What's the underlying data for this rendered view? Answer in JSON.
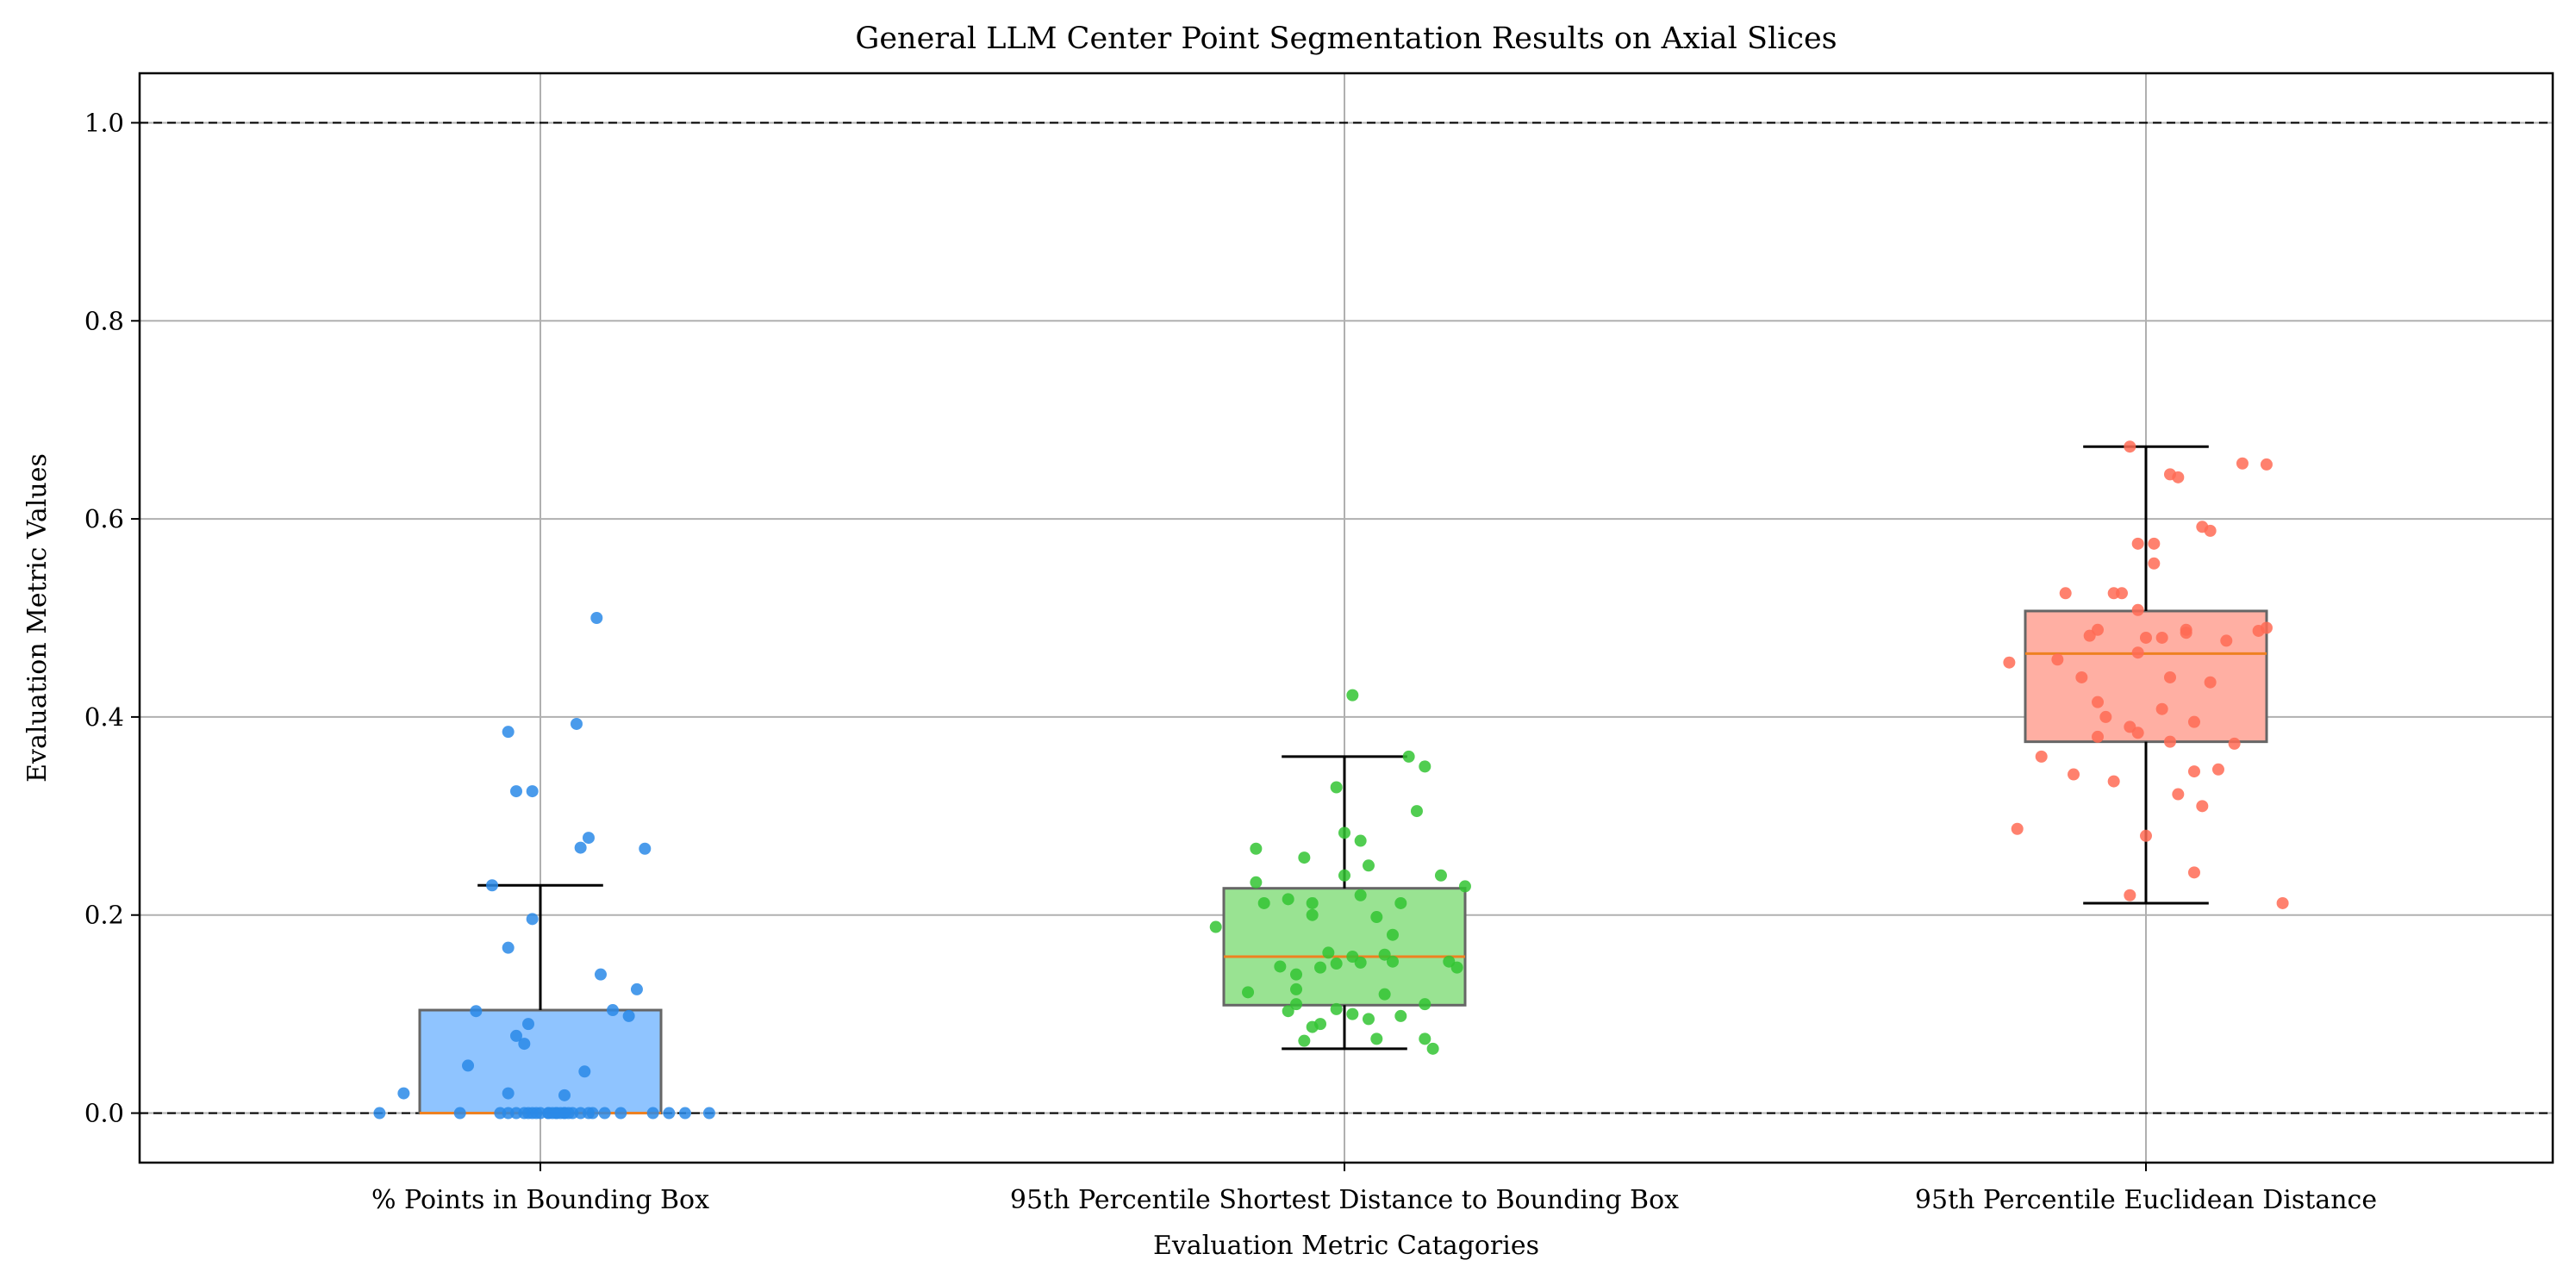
{
  "chart_data": {
    "type": "box",
    "title": "General LLM Center Point Segmentation Results on Axial Slices",
    "xlabel": "Evaluation Metric Catagories",
    "ylabel": "Evaluation Metric Values",
    "ylim": [
      -0.05,
      1.05
    ],
    "yticks": [
      0.0,
      0.2,
      0.4,
      0.6,
      0.8,
      1.0
    ],
    "ytick_labels": [
      "0.0",
      "0.2",
      "0.4",
      "0.6",
      "0.8",
      "1.0"
    ],
    "reference_lines": [
      0.0,
      1.0
    ],
    "grid": true,
    "categories": [
      "% Points in Bounding Box",
      "95th Percentile Shortest Distance to Bounding Box",
      "95th Percentile Euclidean Distance"
    ],
    "boxes": [
      {
        "q1": 0.0,
        "median": 0.0,
        "q3": 0.104,
        "whisker_low": 0.0,
        "whisker_high": 0.23
      },
      {
        "q1": 0.109,
        "median": 0.158,
        "q3": 0.227,
        "whisker_low": 0.065,
        "whisker_high": 0.36
      },
      {
        "q1": 0.375,
        "median": 0.464,
        "q3": 0.507,
        "whisker_low": 0.212,
        "whisker_high": 0.673
      }
    ],
    "points": [
      [
        [
          -0.2,
          0.0
        ],
        [
          -0.17,
          0.02
        ],
        [
          -0.1,
          0.0
        ],
        [
          -0.06,
          0.23
        ],
        [
          -0.05,
          0.0
        ],
        [
          -0.04,
          0.0
        ],
        [
          -0.03,
          0.0
        ],
        [
          -0.03,
          0.325
        ],
        [
          -0.02,
          0.0
        ],
        [
          -0.015,
          0.0
        ],
        [
          -0.01,
          0.0
        ],
        [
          -0.005,
          0.0
        ],
        [
          0.0,
          0.0
        ],
        [
          0.01,
          0.0
        ],
        [
          0.015,
          0.0
        ],
        [
          0.02,
          0.0
        ],
        [
          0.025,
          0.0
        ],
        [
          0.03,
          0.0
        ],
        [
          0.035,
          0.0
        ],
        [
          0.04,
          0.0
        ],
        [
          0.05,
          0.0
        ],
        [
          -0.09,
          0.048
        ],
        [
          -0.08,
          0.103
        ],
        [
          -0.04,
          0.385
        ],
        [
          -0.04,
          0.167
        ],
        [
          -0.04,
          0.02
        ],
        [
          -0.03,
          0.078
        ],
        [
          -0.02,
          0.07
        ],
        [
          -0.015,
          0.09
        ],
        [
          -0.01,
          0.196
        ],
        [
          -0.01,
          0.325
        ],
        [
          0.01,
          0.0
        ],
        [
          0.02,
          0.0
        ],
        [
          0.03,
          0.018
        ],
        [
          0.045,
          0.393
        ],
        [
          0.03,
          0.0
        ],
        [
          0.05,
          0.268
        ],
        [
          0.06,
          0.278
        ],
        [
          0.055,
          0.042
        ],
        [
          0.065,
          0.0
        ],
        [
          0.075,
          0.14
        ],
        [
          0.09,
          0.104
        ],
        [
          0.07,
          0.5
        ],
        [
          0.08,
          0.0
        ],
        [
          0.11,
          0.098
        ],
        [
          0.12,
          0.125
        ],
        [
          0.13,
          0.267
        ],
        [
          0.14,
          0.0
        ],
        [
          0.16,
          0.0
        ],
        [
          0.18,
          0.0
        ],
        [
          0.21,
          0.0
        ],
        [
          0.06,
          0.0
        ],
        [
          0.1,
          0.0
        ]
      ],
      [
        [
          -0.16,
          0.188
        ],
        [
          -0.12,
          0.122
        ],
        [
          -0.11,
          0.233
        ],
        [
          -0.11,
          0.267
        ],
        [
          -0.1,
          0.212
        ],
        [
          -0.08,
          0.148
        ],
        [
          -0.07,
          0.216
        ],
        [
          -0.07,
          0.103
        ],
        [
          -0.06,
          0.14
        ],
        [
          -0.06,
          0.125
        ],
        [
          -0.06,
          0.11
        ],
        [
          -0.05,
          0.073
        ],
        [
          -0.05,
          0.258
        ],
        [
          -0.04,
          0.087
        ],
        [
          -0.04,
          0.2
        ],
        [
          -0.04,
          0.212
        ],
        [
          -0.03,
          0.09
        ],
        [
          -0.03,
          0.147
        ],
        [
          -0.02,
          0.162
        ],
        [
          -0.01,
          0.105
        ],
        [
          -0.01,
          0.151
        ],
        [
          -0.01,
          0.329
        ],
        [
          0.0,
          0.283
        ],
        [
          0.0,
          0.24
        ],
        [
          0.01,
          0.158
        ],
        [
          0.01,
          0.1
        ],
        [
          0.01,
          0.422
        ],
        [
          0.02,
          0.152
        ],
        [
          0.02,
          0.275
        ],
        [
          0.03,
          0.25
        ],
        [
          0.03,
          0.095
        ],
        [
          0.04,
          0.198
        ],
        [
          0.04,
          0.075
        ],
        [
          0.05,
          0.16
        ],
        [
          0.06,
          0.153
        ],
        [
          0.06,
          0.18
        ],
        [
          0.07,
          0.098
        ],
        [
          0.08,
          0.36
        ],
        [
          0.09,
          0.305
        ],
        [
          0.1,
          0.35
        ],
        [
          0.1,
          0.11
        ],
        [
          0.11,
          0.065
        ],
        [
          0.12,
          0.24
        ],
        [
          0.13,
          0.153
        ],
        [
          0.14,
          0.147
        ],
        [
          0.15,
          0.229
        ],
        [
          0.02,
          0.22
        ],
        [
          0.05,
          0.12
        ],
        [
          0.07,
          0.212
        ],
        [
          0.1,
          0.075
        ]
      ],
      [
        [
          -0.17,
          0.455
        ],
        [
          -0.16,
          0.287
        ],
        [
          -0.13,
          0.36
        ],
        [
          -0.11,
          0.458
        ],
        [
          -0.1,
          0.525
        ],
        [
          -0.09,
          0.342
        ],
        [
          -0.08,
          0.44
        ],
        [
          -0.07,
          0.482
        ],
        [
          -0.06,
          0.488
        ],
        [
          -0.06,
          0.415
        ],
        [
          -0.06,
          0.38
        ],
        [
          -0.05,
          0.4
        ],
        [
          -0.04,
          0.525
        ],
        [
          -0.04,
          0.335
        ],
        [
          -0.03,
          0.525
        ],
        [
          -0.02,
          0.39
        ],
        [
          -0.02,
          0.673
        ],
        [
          -0.02,
          0.22
        ],
        [
          -0.01,
          0.575
        ],
        [
          -0.01,
          0.508
        ],
        [
          -0.01,
          0.465
        ],
        [
          -0.01,
          0.384
        ],
        [
          0.0,
          0.48
        ],
        [
          0.0,
          0.28
        ],
        [
          0.01,
          0.555
        ],
        [
          0.01,
          0.575
        ],
        [
          0.02,
          0.48
        ],
        [
          0.03,
          0.645
        ],
        [
          0.03,
          0.44
        ],
        [
          0.03,
          0.375
        ],
        [
          0.04,
          0.642
        ],
        [
          0.04,
          0.322
        ],
        [
          0.05,
          0.488
        ],
        [
          0.05,
          0.485
        ],
        [
          0.06,
          0.395
        ],
        [
          0.06,
          0.345
        ],
        [
          0.07,
          0.592
        ],
        [
          0.07,
          0.31
        ],
        [
          0.08,
          0.588
        ],
        [
          0.08,
          0.435
        ],
        [
          0.09,
          0.347
        ],
        [
          0.1,
          0.477
        ],
        [
          0.11,
          0.373
        ],
        [
          0.12,
          0.656
        ],
        [
          0.14,
          0.487
        ],
        [
          0.15,
          0.49
        ],
        [
          0.15,
          0.655
        ],
        [
          0.06,
          0.243
        ],
        [
          0.17,
          0.212
        ],
        [
          0.02,
          0.408
        ]
      ]
    ],
    "colors": {
      "box_fills": [
        "#8fc4ff",
        "#99e392",
        "#ffafa3"
      ],
      "point_colors": [
        "#2a8ae8",
        "#33c433",
        "#ff6b55"
      ],
      "median": "#ee8121",
      "box_edge": "#666666",
      "whisker": "#000000",
      "grid": "#b0b0b0",
      "reference_line": "#000000"
    }
  }
}
